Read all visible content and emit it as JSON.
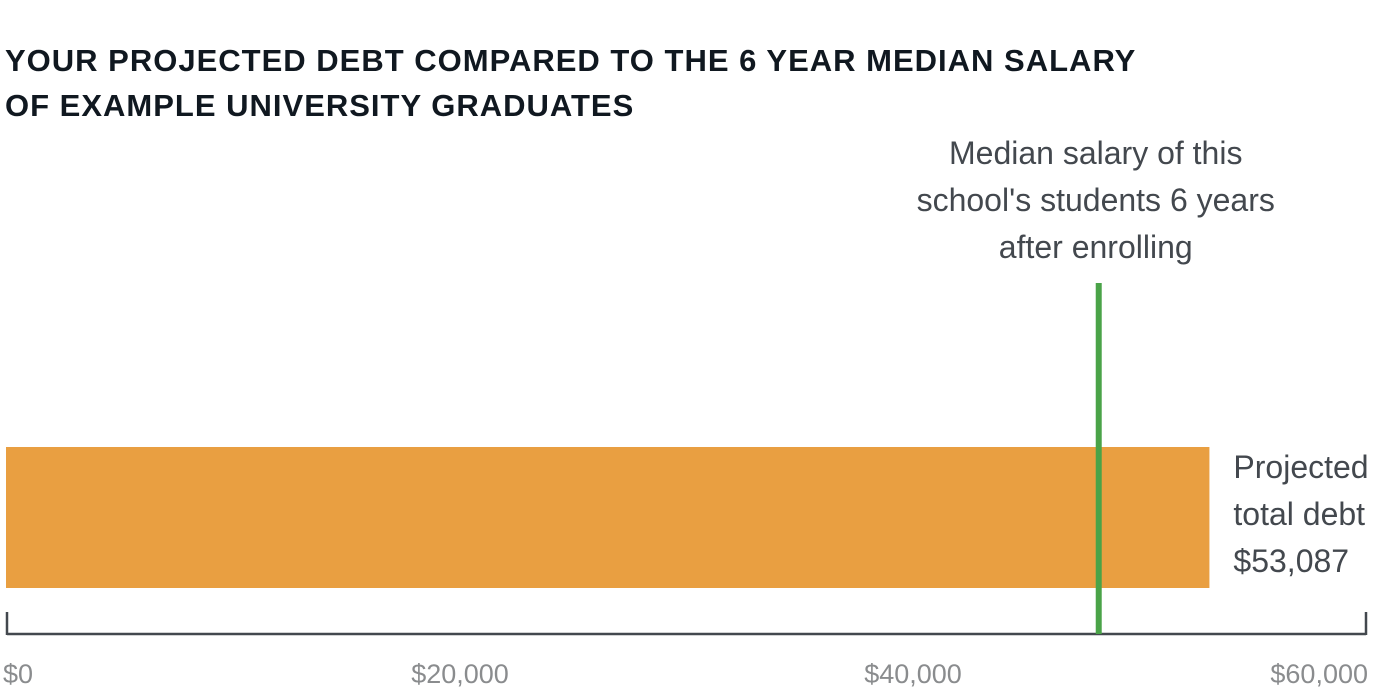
{
  "chart_data": {
    "type": "bar",
    "orientation": "horizontal",
    "title_lines": [
      "YOUR PROJECTED DEBT COMPARED TO THE 6 YEAR MEDIAN SALARY",
      "OF EXAMPLE UNIVERSITY GRADUATES"
    ],
    "series": [
      {
        "name": "Projected total debt",
        "value": 53087,
        "label_lines": [
          "Projected",
          "total debt",
          "$53,087"
        ],
        "color": "#e99f41"
      }
    ],
    "reference_line": {
      "name": "Median salary",
      "value": 48200,
      "label_lines": [
        "Median salary of this",
        "school's students 6 years",
        "after enrolling"
      ],
      "color": "#4aa348"
    },
    "x_axis": {
      "range": [
        0,
        60000
      ],
      "ticks": [
        0,
        20000,
        40000,
        60000
      ],
      "tick_labels": [
        "$0",
        "$20,000",
        "$40,000",
        "$60,000"
      ],
      "color": "#43484e"
    },
    "xlabel": "",
    "ylabel": "",
    "grid": false,
    "legend": "none"
  }
}
